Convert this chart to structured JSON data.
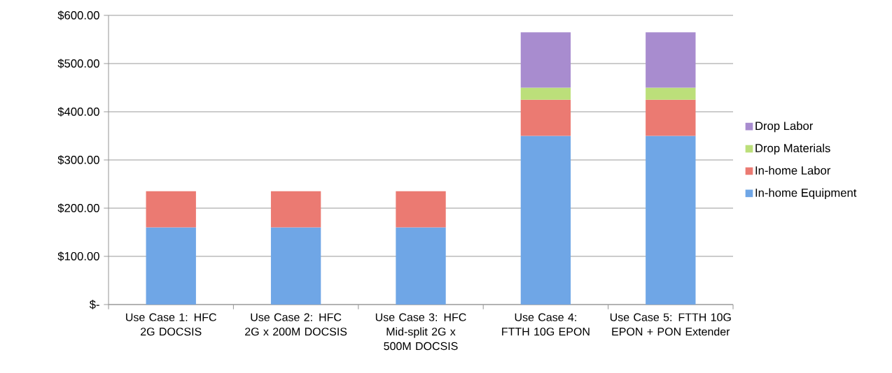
{
  "chart_data": {
    "type": "bar",
    "stacked": true,
    "categories": [
      "Use Case 1: HFC 2G DOCSIS",
      "Use Case 2: HFC 2G x 200M DOCSIS",
      "Use Case 3: HFC Mid-split 2G x 500M DOCSIS",
      "Use Case 4: FTTH 10G EPON",
      "Use Case 5: FTTH 10G EPON + PON Extender"
    ],
    "series": [
      {
        "name": "In-home Equipment",
        "color": "#6fa6e6",
        "values": [
          160,
          160,
          160,
          350,
          350
        ]
      },
      {
        "name": "In-home Labor",
        "color": "#eb7a72",
        "values": [
          75,
          75,
          75,
          75,
          75
        ]
      },
      {
        "name": "Drop Materials",
        "color": "#bcdf7a",
        "values": [
          null,
          null,
          null,
          25,
          25
        ]
      },
      {
        "name": "Drop Labor",
        "color": "#a88ccf",
        "values": [
          null,
          null,
          null,
          115,
          115
        ]
      }
    ],
    "ylim": [
      0,
      600
    ],
    "yticks": [
      {
        "value": 0,
        "label": "$-"
      },
      {
        "value": 100,
        "label": "$100.00"
      },
      {
        "value": 200,
        "label": "$200.00"
      },
      {
        "value": 300,
        "label": "$300.00"
      },
      {
        "value": 400,
        "label": "$400.00"
      },
      {
        "value": 500,
        "label": "$500.00"
      },
      {
        "value": 600,
        "label": "$600.00"
      }
    ],
    "grid": "y",
    "legend": "right"
  }
}
